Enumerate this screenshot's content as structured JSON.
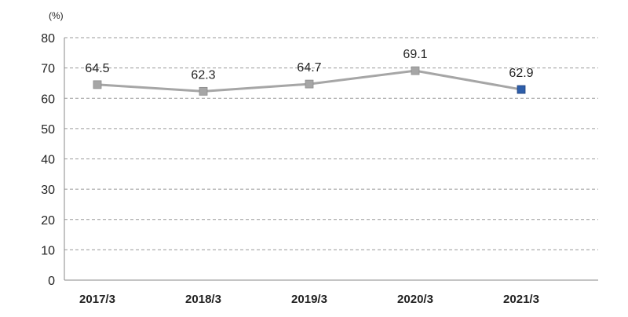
{
  "chart_data": {
    "type": "line",
    "unit": "(%)",
    "categories": [
      "2017/3",
      "2018/3",
      "2019/3",
      "2020/3",
      "2021/3"
    ],
    "values": [
      64.5,
      62.3,
      64.7,
      69.1,
      62.9
    ],
    "data_labels": [
      "64.5",
      "62.3",
      "64.7",
      "69.1",
      "62.9"
    ],
    "ylim": [
      0,
      80
    ],
    "yticks": [
      0,
      10,
      20,
      30,
      40,
      50,
      60,
      70,
      80
    ],
    "grid": true,
    "line_color": "#a6a6a6",
    "marker_color": "#a6a6a6",
    "highlight_marker_color": "#2e5eaa",
    "highlight_index": 4
  }
}
